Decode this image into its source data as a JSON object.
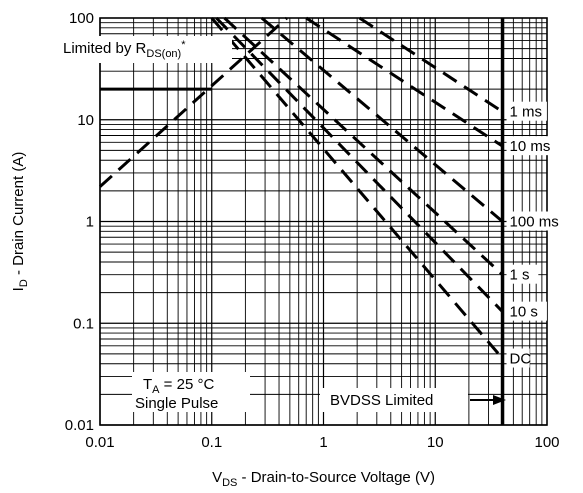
{
  "chart_data": {
    "type": "line",
    "title": "",
    "xscale": "log",
    "yscale": "log",
    "xlim": [
      0.01,
      100
    ],
    "ylim": [
      0.01,
      100
    ],
    "grid": true,
    "x_ticks": [
      "0.01",
      "0.1",
      "1",
      "10",
      "100"
    ],
    "y_ticks": [
      "0.01",
      "0.1",
      "1",
      "10",
      "100"
    ],
    "xlabel": {
      "main": "V",
      "sub": "DS",
      "rest": " - Drain-to-Source Voltage (V)"
    },
    "ylabel": {
      "main": "I",
      "sub": "D",
      "rest": " - Drain Current (A)"
    },
    "limits": {
      "rds_on_line": [
        [
          0.01,
          2.2
        ],
        [
          0.47,
          100
        ]
      ],
      "current_limit_A": 20,
      "current_limit_x_end": 0.1,
      "bvdss_V": 40
    },
    "series": [
      {
        "name": "1 ms",
        "points": [
          [
            2.1,
            100
          ],
          [
            40,
            12
          ]
        ]
      },
      {
        "name": "10 ms",
        "points": [
          [
            0.7,
            100
          ],
          [
            40,
            5.5
          ]
        ]
      },
      {
        "name": "100 ms",
        "points": [
          [
            0.28,
            100
          ],
          [
            40,
            1
          ]
        ]
      },
      {
        "name": "1 s",
        "points": [
          [
            0.13,
            100
          ],
          [
            40,
            0.3
          ]
        ]
      },
      {
        "name": "10 s",
        "points": [
          [
            0.11,
            100
          ],
          [
            40,
            0.13
          ]
        ]
      },
      {
        "name": "DC",
        "points": [
          [
            0.1,
            100
          ],
          [
            40,
            0.045
          ]
        ]
      }
    ],
    "annotations": {
      "rds_label": {
        "main": "Limited by R",
        "sub": "DS(on)",
        "sup": "*"
      },
      "ta_label": {
        "main": "T",
        "sub": "A",
        "rest": " = 25 °C"
      },
      "pulse_label": "Single Pulse",
      "bvdss_label": "BVDSS Limited"
    }
  }
}
